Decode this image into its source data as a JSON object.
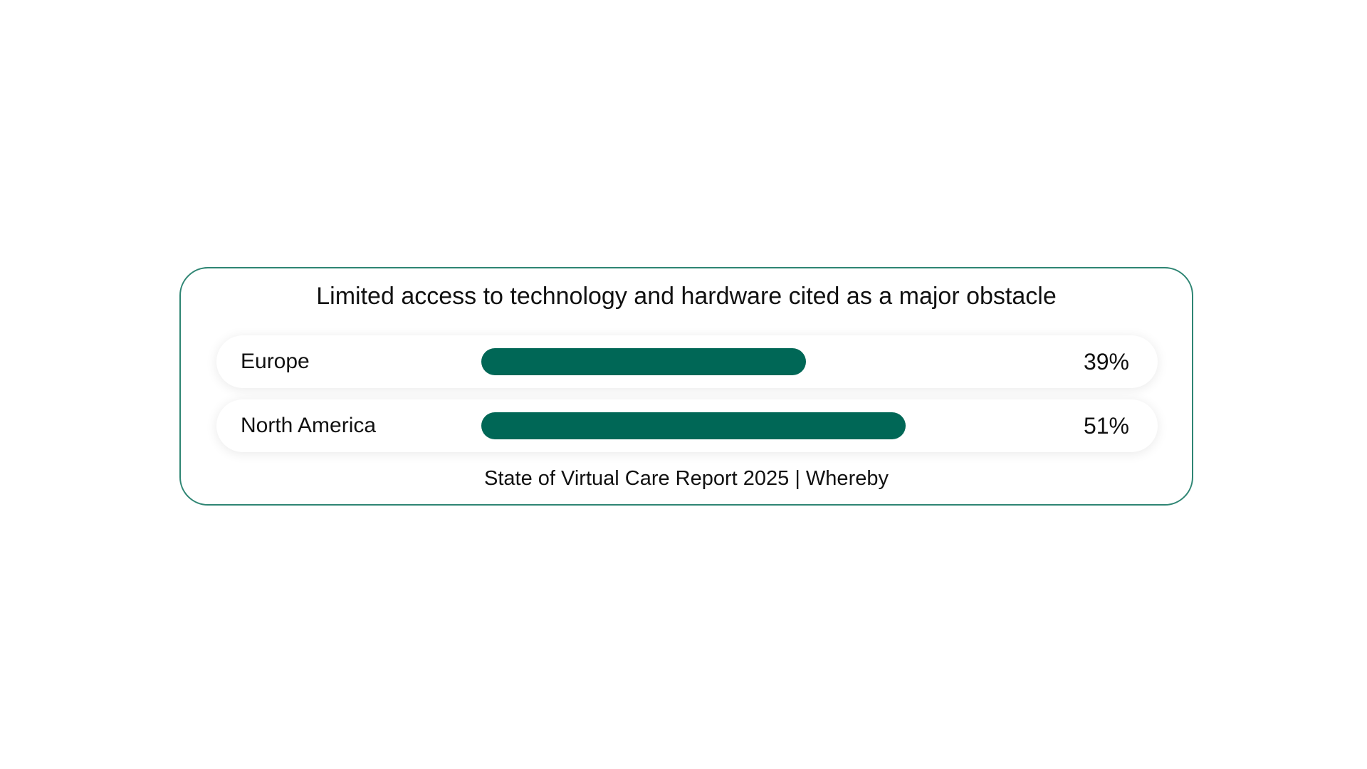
{
  "chart_data": {
    "type": "bar",
    "orientation": "horizontal",
    "title": "Limited access to technology and hardware cited as a major obstacle",
    "categories": [
      "Europe",
      "North America"
    ],
    "values": [
      39,
      51
    ],
    "value_labels": [
      "39%",
      "51%"
    ],
    "xlim": [
      0,
      65
    ],
    "source": "State of Virtual Care Report 2025 | Whereby",
    "bar_color": "#006756",
    "border_color": "#2e8573"
  }
}
